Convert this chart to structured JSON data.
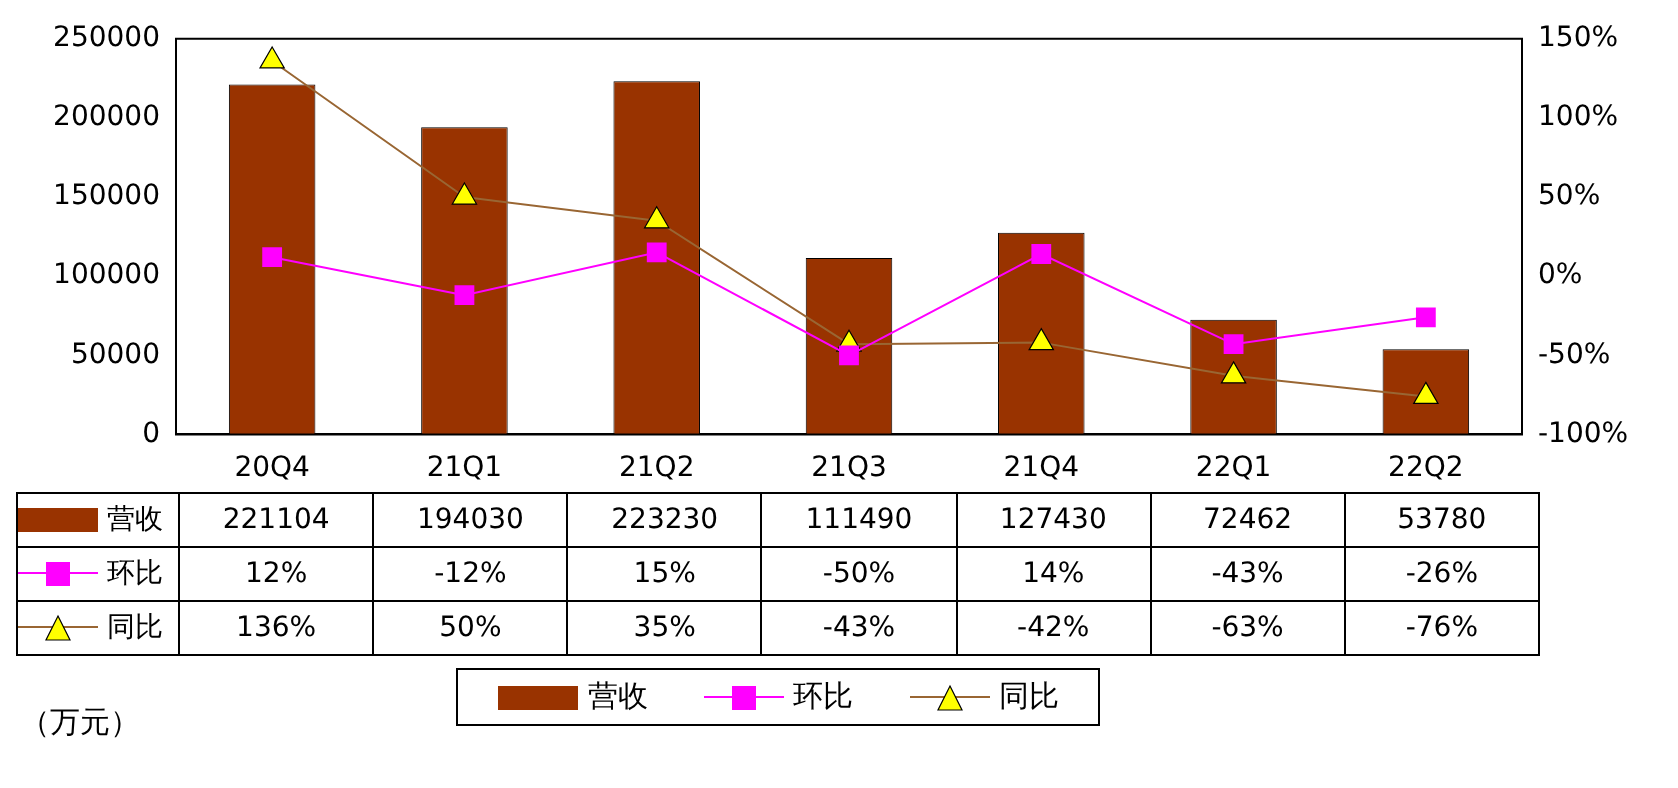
{
  "chart_data": {
    "type": "bar",
    "annotations": [
      "（万元）"
    ],
    "categories": [
      "20Q4",
      "21Q1",
      "21Q2",
      "21Q3",
      "21Q4",
      "22Q1",
      "22Q2"
    ],
    "series": [
      {
        "name": "营收",
        "color": "#993300",
        "values": [
          221104,
          194030,
          223230,
          111490,
          127430,
          72462,
          53780
        ],
        "value_labels": [
          "221104",
          "194030",
          "223230",
          "111490",
          "127430",
          "72462",
          "53780"
        ]
      },
      {
        "name": "环比",
        "type": "line",
        "axis": "y2",
        "color": "#ff00ff",
        "marker": "square",
        "values": [
          12,
          -12,
          15,
          -50,
          14,
          -43,
          -26
        ],
        "value_labels": [
          "12%",
          "-12%",
          "15%",
          "-50%",
          "14%",
          "-43%",
          "-26%"
        ]
      },
      {
        "name": "同比",
        "type": "line",
        "axis": "y2",
        "color": "#996633",
        "colors": [
          "#ffff00",
          "#ffff00",
          "#ffff00",
          "#ffff00",
          "#ffff00",
          "#ffff00",
          "#ffff00"
        ],
        "marker": "triangle",
        "values": [
          136,
          50,
          35,
          -43,
          -42,
          -63,
          -76
        ],
        "value_labels": [
          "136%",
          "50%",
          "35%",
          "-43%",
          "-42%",
          "-63%",
          "-76%"
        ]
      }
    ],
    "ylim": [
      0,
      250000
    ],
    "yticks": [
      0,
      50000,
      100000,
      150000,
      200000,
      250000
    ],
    "y2lim": [
      -100,
      150
    ],
    "y2ticks": [
      {
        "value": -100,
        "label": "-100%"
      },
      {
        "value": -50,
        "label": "-50%"
      },
      {
        "value": 0,
        "label": "0%"
      },
      {
        "value": 50,
        "label": "50%"
      },
      {
        "value": 100,
        "label": "100%"
      },
      {
        "value": 150,
        "label": "150%"
      }
    ],
    "grid": false,
    "legend": "bottom"
  }
}
